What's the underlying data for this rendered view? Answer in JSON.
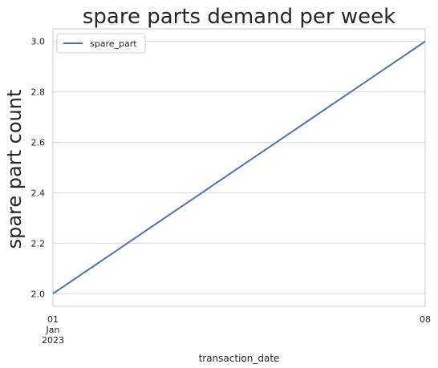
{
  "chart_data": {
    "type": "line",
    "title": "spare parts demand per week",
    "xlabel": "transaction_date",
    "ylabel": "spare part count",
    "x": [
      "2023-01-01",
      "2023-01-08"
    ],
    "x_tick_labels": [
      {
        "x": "2023-01-01",
        "lines": [
          "01",
          "Jan",
          "2023"
        ]
      },
      {
        "x": "2023-01-08",
        "lines": [
          "08"
        ]
      }
    ],
    "series": [
      {
        "name": "spare_part",
        "values": [
          2.0,
          3.0
        ],
        "color": "#4c72b0"
      }
    ],
    "ylim": [
      1.95,
      3.05
    ],
    "y_ticks": [
      2.0,
      2.2,
      2.4,
      2.6,
      2.8,
      3.0
    ],
    "y_tick_labels": [
      "2.0",
      "2.2",
      "2.4",
      "2.6",
      "2.8",
      "3.0"
    ],
    "grid": "horizontal",
    "legend": "upper-left"
  }
}
